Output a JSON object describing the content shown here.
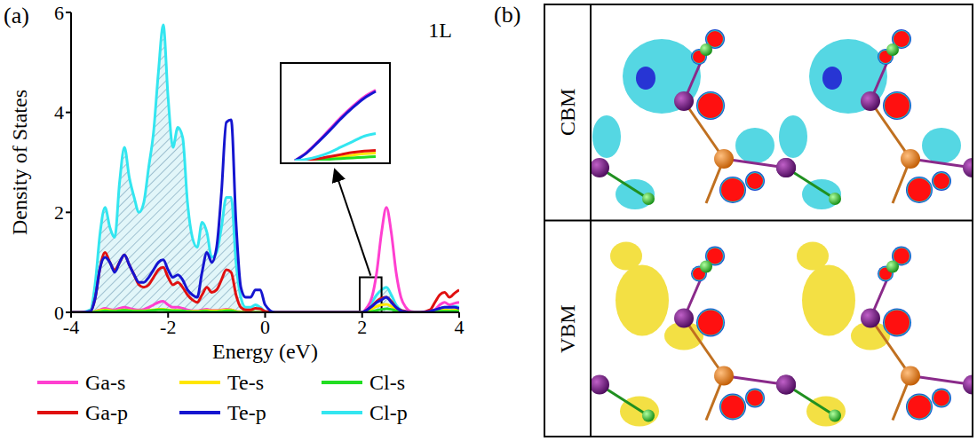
{
  "chart_data": [
    {
      "type": "line",
      "panel_label": "(a)",
      "annotations": [
        "1L"
      ],
      "x_label": "Energy (eV)",
      "y_label": "Density of States",
      "legend": "bottom",
      "xlim": [
        -4,
        4
      ],
      "xticks": [
        -4,
        -2,
        0,
        2,
        4
      ],
      "ylim": [
        0,
        6
      ],
      "yticks": [
        0,
        2,
        4,
        6
      ],
      "x": [
        -4,
        -3.8,
        -3.6,
        -3.5,
        -3.4,
        -3.3,
        -3.2,
        -3.1,
        -3.0,
        -2.9,
        -2.8,
        -2.7,
        -2.6,
        -2.5,
        -2.4,
        -2.3,
        -2.2,
        -2.1,
        -2.0,
        -1.9,
        -1.8,
        -1.7,
        -1.6,
        -1.5,
        -1.4,
        -1.3,
        -1.2,
        -1.1,
        -1.0,
        -0.9,
        -0.8,
        -0.7,
        -0.6,
        -0.5,
        -0.4,
        -0.3,
        -0.2,
        -0.1,
        0,
        0.2,
        1.0,
        1.9,
        2.0,
        2.1,
        2.2,
        2.3,
        2.4,
        2.5,
        2.6,
        2.7,
        2.8,
        2.9,
        3.0,
        3.2,
        3.4,
        3.5,
        3.6,
        3.7,
        3.8,
        3.9,
        4.0
      ],
      "series": [
        {
          "name": "Ga-s",
          "color": "#ff3fd0",
          "values": [
            0,
            0,
            0,
            0.02,
            0.05,
            0.08,
            0.06,
            0.05,
            0.08,
            0.1,
            0.08,
            0.06,
            0.05,
            0.06,
            0.1,
            0.15,
            0.2,
            0.22,
            0.15,
            0.1,
            0.1,
            0.08,
            0.05,
            0.03,
            0.03,
            0.05,
            0.06,
            0.04,
            0.04,
            0.05,
            0.06,
            0.05,
            0.02,
            0.01,
            0,
            0,
            0,
            0,
            0,
            0,
            0,
            0,
            0,
            0.1,
            0.3,
            0.8,
            1.6,
            2.1,
            1.6,
            0.8,
            0.3,
            0.1,
            0.02,
            0,
            0.01,
            0.05,
            0.15,
            0.2,
            0.15,
            0.18,
            0.2
          ]
        },
        {
          "name": "Te-s",
          "color": "#ffe600",
          "values": [
            0,
            0,
            0,
            0.02,
            0.04,
            0.05,
            0.04,
            0.03,
            0.04,
            0.05,
            0.04,
            0.03,
            0.03,
            0.03,
            0.04,
            0.05,
            0.06,
            0.06,
            0.05,
            0.04,
            0.04,
            0.03,
            0.02,
            0.02,
            0.02,
            0.03,
            0.04,
            0.03,
            0.03,
            0.04,
            0.05,
            0.05,
            0.02,
            0.01,
            0,
            0,
            0,
            0,
            0,
            0,
            0,
            0,
            0,
            0.03,
            0.07,
            0.12,
            0.15,
            0.16,
            0.12,
            0.06,
            0.02,
            0.01,
            0,
            0,
            0.01,
            0.02,
            0.04,
            0.05,
            0.04,
            0.05,
            0.05
          ]
        },
        {
          "name": "Cl-s",
          "color": "#22dd22",
          "values": [
            0,
            0,
            0,
            0.01,
            0.02,
            0.03,
            0.02,
            0.02,
            0.03,
            0.04,
            0.03,
            0.02,
            0.02,
            0.02,
            0.03,
            0.04,
            0.05,
            0.05,
            0.04,
            0.03,
            0.03,
            0.03,
            0.02,
            0.01,
            0.01,
            0.02,
            0.02,
            0.01,
            0.01,
            0.02,
            0.03,
            0.03,
            0.01,
            0,
            0,
            0,
            0,
            0,
            0,
            0,
            0,
            0,
            0,
            0.01,
            0.02,
            0.04,
            0.06,
            0.07,
            0.06,
            0.03,
            0.01,
            0,
            0,
            0,
            0,
            0.01,
            0.02,
            0.02,
            0.02,
            0.02,
            0.02
          ]
        },
        {
          "name": "Ga-p",
          "color": "#e01010",
          "values": [
            0,
            0,
            0.02,
            0.3,
            0.9,
            1.2,
            1.0,
            0.85,
            1.0,
            1.15,
            0.95,
            0.75,
            0.55,
            0.5,
            0.55,
            0.7,
            0.85,
            0.9,
            0.7,
            0.55,
            0.6,
            0.5,
            0.35,
            0.25,
            0.2,
            0.35,
            0.5,
            0.4,
            0.45,
            0.65,
            0.85,
            0.8,
            0.35,
            0.1,
            0.05,
            0.05,
            0.08,
            0.07,
            0.02,
            0,
            0,
            0,
            0,
            0.05,
            0.12,
            0.22,
            0.28,
            0.3,
            0.22,
            0.1,
            0.04,
            0.02,
            0,
            0,
            0.05,
            0.2,
            0.35,
            0.4,
            0.3,
            0.38,
            0.45
          ]
        },
        {
          "name": "Te-p",
          "color": "#1515d0",
          "values": [
            0,
            0,
            0.02,
            0.3,
            0.9,
            1.1,
            1.0,
            0.8,
            1.0,
            1.15,
            0.95,
            0.75,
            0.6,
            0.6,
            0.7,
            0.85,
            1.0,
            1.05,
            0.85,
            0.7,
            0.75,
            0.65,
            0.45,
            0.35,
            0.3,
            0.8,
            1.2,
            1.0,
            1.3,
            2.4,
            3.8,
            3.85,
            1.8,
            0.5,
            0.3,
            0.3,
            0.45,
            0.45,
            0.15,
            0,
            0,
            0,
            0,
            0.05,
            0.12,
            0.2,
            0.25,
            0.3,
            0.2,
            0.1,
            0.03,
            0.01,
            0,
            0,
            0.02,
            0.05,
            0.08,
            0.1,
            0.1,
            0.1,
            0.08
          ]
        },
        {
          "name": "Cl-p",
          "color": "#33e6f0",
          "type": "area",
          "values": [
            0,
            0,
            0.05,
            0.6,
            1.6,
            2.1,
            1.7,
            1.5,
            2.6,
            3.3,
            2.7,
            2.3,
            2.0,
            2.2,
            2.9,
            3.6,
            4.8,
            5.75,
            4.3,
            3.3,
            3.7,
            3.5,
            2.2,
            1.5,
            1.3,
            1.8,
            1.6,
            1.1,
            1.2,
            1.7,
            2.3,
            2.3,
            1.0,
            0.3,
            0.1,
            0.1,
            0.15,
            0.1,
            0.02,
            0,
            0,
            0,
            0,
            0.08,
            0.2,
            0.35,
            0.45,
            0.5,
            0.35,
            0.15,
            0.05,
            0.02,
            0,
            0,
            0.02,
            0.05,
            0.08,
            0.1,
            0.1,
            0.12,
            0.1
          ]
        }
      ]
    },
    {
      "type": "line",
      "tick_labels": false,
      "xlim": [
        1.95,
        2.4
      ],
      "ylim": [
        0,
        0.7
      ],
      "x": [
        2.0,
        2.05,
        2.1,
        2.15,
        2.2,
        2.25,
        2.3,
        2.35
      ],
      "series": [
        {
          "name": "Ga-s",
          "color": "#ff3fd0",
          "values": [
            0,
            0.06,
            0.14,
            0.23,
            0.32,
            0.4,
            0.47,
            0.52
          ]
        },
        {
          "name": "Te-s",
          "color": "#ffe600",
          "values": [
            0,
            0.004,
            0.01,
            0.02,
            0.03,
            0.04,
            0.05,
            0.055
          ]
        },
        {
          "name": "Cl-s",
          "color": "#22dd22",
          "values": [
            0,
            0.002,
            0.005,
            0.01,
            0.015,
            0.02,
            0.025,
            0.03
          ]
        },
        {
          "name": "Ga-p",
          "color": "#e01010",
          "values": [
            0,
            0.005,
            0.015,
            0.03,
            0.045,
            0.06,
            0.07,
            0.075
          ]
        },
        {
          "name": "Te-p",
          "color": "#1515d0",
          "values": [
            0,
            0.055,
            0.135,
            0.22,
            0.31,
            0.39,
            0.46,
            0.51
          ]
        },
        {
          "name": "Cl-p",
          "color": "#33e6f0",
          "values": [
            0,
            0.01,
            0.03,
            0.06,
            0.1,
            0.14,
            0.18,
            0.2
          ]
        }
      ]
    }
  ],
  "panel_b": {
    "label": "(b)",
    "rows": [
      "CBM",
      "VBM"
    ]
  }
}
